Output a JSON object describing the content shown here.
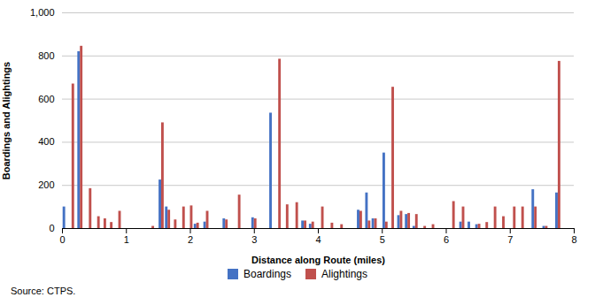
{
  "chart_data": {
    "type": "bar",
    "xlabel": "Distance along Route (miles)",
    "ylabel": "Boardings and Alightings",
    "x": [
      0.05,
      0.15,
      0.28,
      0.42,
      0.55,
      0.65,
      0.75,
      0.88,
      1.4,
      1.55,
      1.65,
      1.75,
      1.88,
      2.0,
      2.1,
      2.25,
      2.55,
      2.75,
      3.0,
      3.28,
      3.38,
      3.5,
      3.65,
      3.78,
      3.9,
      4.05,
      4.2,
      4.35,
      4.65,
      4.78,
      4.88,
      5.05,
      5.15,
      5.28,
      5.4,
      5.52,
      5.65,
      5.78,
      6.1,
      6.25,
      6.38,
      6.5,
      6.62,
      6.75,
      6.88,
      7.05,
      7.18,
      7.38,
      7.55,
      7.75
    ],
    "series": [
      {
        "name": "Boardings",
        "color": "#4472C4",
        "values": [
          100,
          0,
          820,
          0,
          0,
          0,
          0,
          0,
          0,
          225,
          100,
          0,
          0,
          0,
          20,
          30,
          45,
          0,
          50,
          535,
          0,
          0,
          0,
          35,
          20,
          0,
          0,
          0,
          85,
          165,
          45,
          350,
          0,
          60,
          65,
          10,
          0,
          0,
          0,
          30,
          30,
          18,
          0,
          0,
          0,
          0,
          0,
          180,
          10,
          165
        ]
      },
      {
        "name": "Alightings",
        "color": "#C0504D",
        "values": [
          0,
          670,
          845,
          185,
          55,
          45,
          28,
          80,
          10,
          490,
          85,
          40,
          100,
          105,
          25,
          80,
          40,
          155,
          45,
          0,
          785,
          110,
          120,
          35,
          30,
          100,
          25,
          18,
          80,
          35,
          45,
          30,
          655,
          80,
          70,
          65,
          10,
          18,
          125,
          100,
          0,
          20,
          28,
          100,
          55,
          100,
          100,
          100,
          10,
          775
        ]
      }
    ],
    "xlim": [
      0,
      8.0
    ],
    "ylim": [
      0,
      1000
    ],
    "xticks": [
      0,
      1,
      2,
      3,
      4,
      5,
      6,
      7,
      8
    ],
    "yticks": [
      0,
      200,
      400,
      600,
      800,
      {
        "value": 1000,
        "label": "1,000"
      }
    ],
    "grid": true,
    "legend": "bottom",
    "annotations": [
      "Source: CTPS."
    ]
  }
}
